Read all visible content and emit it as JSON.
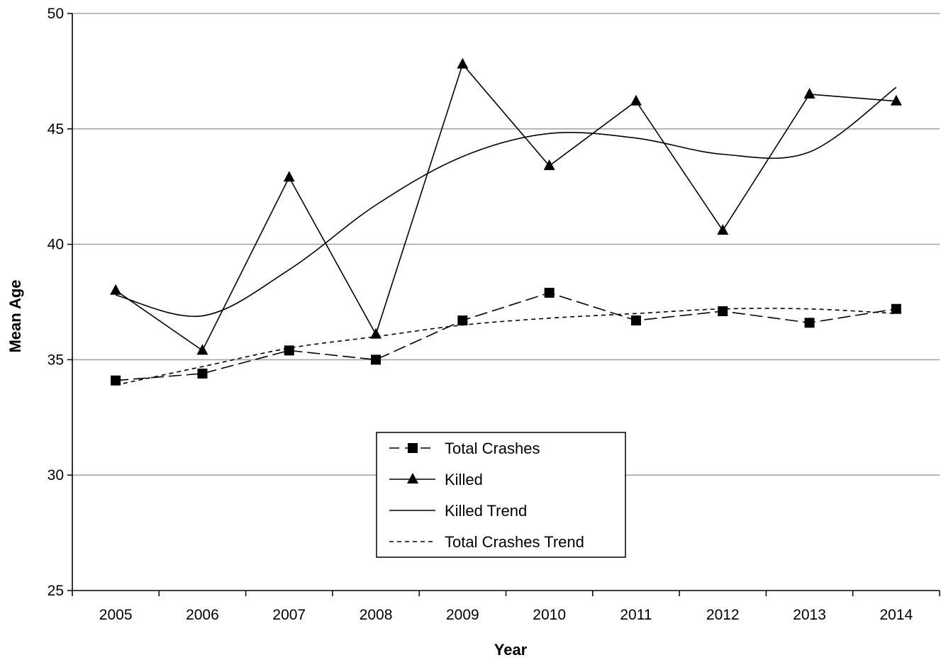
{
  "chart_data": {
    "type": "line",
    "title": "",
    "xlabel": "Year",
    "ylabel": "Mean Age",
    "ylim": [
      25,
      50
    ],
    "yticks": [
      25,
      30,
      35,
      40,
      45,
      50
    ],
    "categories": [
      "2005",
      "2006",
      "2007",
      "2008",
      "2009",
      "2010",
      "2011",
      "2012",
      "2013",
      "2014"
    ],
    "grid": "horizontal",
    "legend_position": "bottom-center",
    "series": [
      {
        "name": "Total Crashes",
        "marker": "square",
        "line_style": "long-dash",
        "values": [
          34.1,
          34.4,
          35.4,
          35.0,
          36.7,
          37.9,
          36.7,
          37.1,
          36.6,
          37.2
        ]
      },
      {
        "name": "Killed",
        "marker": "triangle",
        "line_style": "solid",
        "values": [
          38.0,
          35.4,
          42.9,
          36.1,
          47.8,
          43.4,
          46.2,
          40.6,
          46.5,
          46.2
        ]
      },
      {
        "name": "Killed Trend",
        "marker": "none",
        "line_style": "solid",
        "values": [
          37.8,
          36.9,
          38.9,
          41.7,
          43.8,
          44.8,
          44.6,
          43.9,
          44.0,
          46.8
        ]
      },
      {
        "name": "Total Crashes Trend",
        "marker": "none",
        "line_style": "short-dash",
        "values": [
          33.9,
          34.7,
          35.5,
          36.0,
          36.5,
          36.8,
          37.0,
          37.2,
          37.2,
          37.0
        ]
      }
    ]
  }
}
